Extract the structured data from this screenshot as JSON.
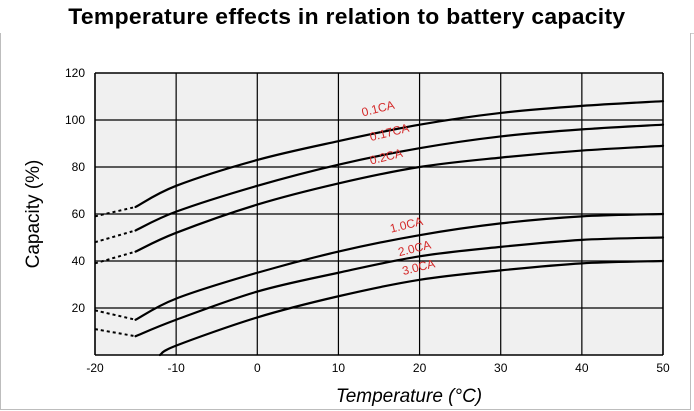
{
  "title": "Temperature effects in relation to battery capacity",
  "colors": {
    "plot_background": "#f0f0f0",
    "grid": "#000000",
    "curve": "#000000",
    "series_label": "#d42a2a"
  },
  "chart_data": {
    "type": "line",
    "title": "Temperature effects in relation to battery capacity",
    "xlabel": "Temperature (°C)",
    "ylabel": "Capacity (%)",
    "xlim": [
      -20,
      50
    ],
    "ylim": [
      0,
      120
    ],
    "x_ticks": [
      -20,
      -10,
      0,
      10,
      20,
      30,
      40,
      50
    ],
    "y_ticks": [
      20,
      40,
      60,
      80,
      100,
      120
    ],
    "x_tick_labels": [
      "-20",
      "-10",
      "0",
      "10",
      "20",
      "30",
      "40",
      "50"
    ],
    "y_tick_labels": [
      "20",
      "40",
      "60",
      "80",
      "100",
      "120"
    ],
    "grid": true,
    "dashed_until_x": -15,
    "series": [
      {
        "name": "0.1CA",
        "points": [
          [
            -20,
            59
          ],
          [
            -15,
            63
          ],
          [
            -10,
            72
          ],
          [
            0,
            83
          ],
          [
            10,
            91
          ],
          [
            20,
            98
          ],
          [
            30,
            103
          ],
          [
            40,
            106
          ],
          [
            50,
            108
          ]
        ]
      },
      {
        "name": "0.17CA",
        "points": [
          [
            -20,
            48
          ],
          [
            -15,
            53
          ],
          [
            -10,
            61
          ],
          [
            0,
            72
          ],
          [
            10,
            81
          ],
          [
            20,
            88
          ],
          [
            30,
            93
          ],
          [
            40,
            96
          ],
          [
            50,
            98
          ]
        ]
      },
      {
        "name": "0.2CA",
        "points": [
          [
            -20,
            39
          ],
          [
            -15,
            44
          ],
          [
            -10,
            52
          ],
          [
            0,
            64
          ],
          [
            10,
            73
          ],
          [
            20,
            80
          ],
          [
            30,
            84
          ],
          [
            40,
            87
          ],
          [
            50,
            89
          ]
        ]
      },
      {
        "name": "1.0CA",
        "points": [
          [
            -20,
            19
          ],
          [
            -15,
            15
          ],
          [
            -10,
            24
          ],
          [
            0,
            35
          ],
          [
            10,
            44
          ],
          [
            20,
            51
          ],
          [
            30,
            56
          ],
          [
            40,
            59
          ],
          [
            50,
            60
          ]
        ]
      },
      {
        "name": "2.0CA",
        "points": [
          [
            -20,
            11
          ],
          [
            -15,
            8
          ],
          [
            -10,
            15
          ],
          [
            0,
            27
          ],
          [
            10,
            35
          ],
          [
            20,
            42
          ],
          [
            30,
            46
          ],
          [
            40,
            49
          ],
          [
            50,
            50
          ]
        ]
      },
      {
        "name": "3.0CA",
        "points": [
          [
            -12,
            0
          ],
          [
            -10,
            4
          ],
          [
            0,
            16
          ],
          [
            10,
            25
          ],
          [
            20,
            32
          ],
          [
            30,
            36
          ],
          [
            40,
            39
          ],
          [
            50,
            40
          ]
        ]
      }
    ],
    "series_label_anchors": [
      {
        "name": "0.1CA",
        "x": 13,
        "y": 101.5
      },
      {
        "name": "0.17CA",
        "x": 14,
        "y": 91
      },
      {
        "name": "0.2CA",
        "x": 14,
        "y": 81
      },
      {
        "name": "1.0CA",
        "x": 16.5,
        "y": 52
      },
      {
        "name": "2.0CA",
        "x": 17.5,
        "y": 42
      },
      {
        "name": "3.0CA",
        "x": 18,
        "y": 34
      }
    ]
  }
}
